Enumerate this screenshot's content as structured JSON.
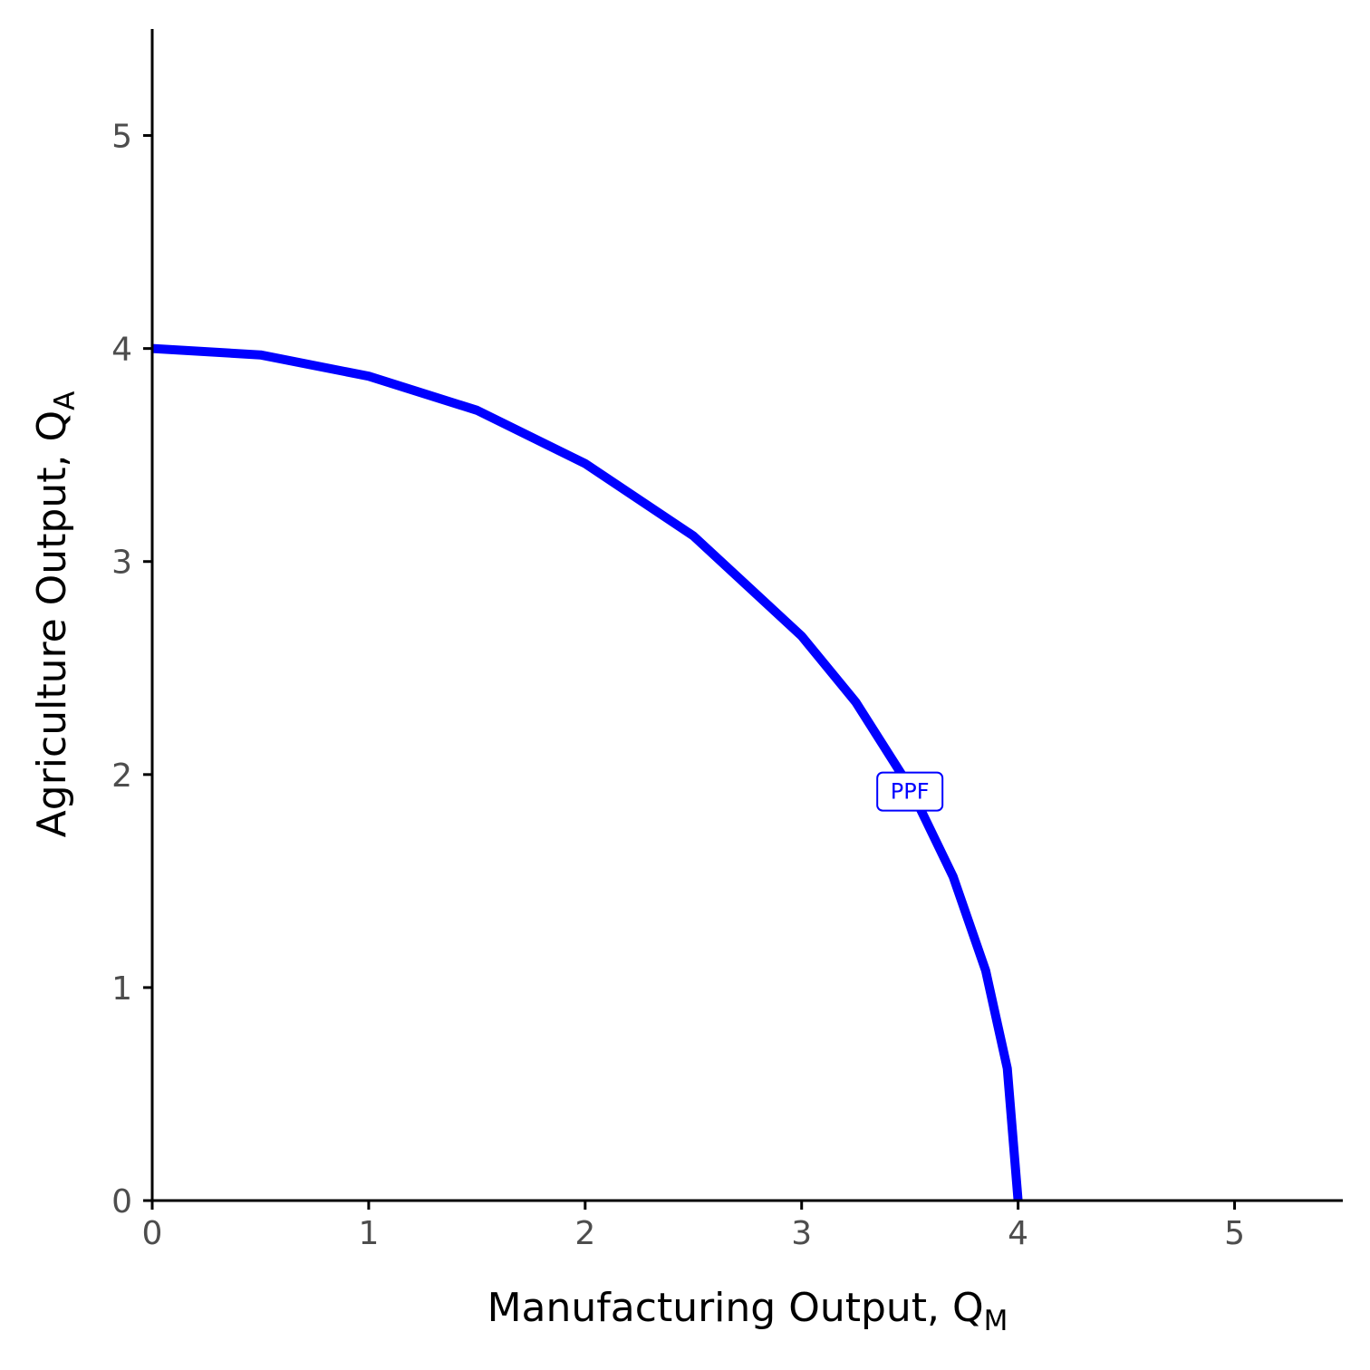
{
  "chart_data": {
    "type": "line",
    "xlabel": {
      "text": "Manufacturing Output, Q",
      "sub": "M"
    },
    "ylabel": {
      "text": "Agriculture Output, Q",
      "sub": "A"
    },
    "xlim": [
      0,
      5.5
    ],
    "ylim": [
      0,
      5.5
    ],
    "x_ticks": [
      "0",
      "1",
      "2",
      "3",
      "4",
      "5"
    ],
    "y_ticks": [
      "0",
      "1",
      "2",
      "3",
      "4",
      "5"
    ],
    "grid": false,
    "series": [
      {
        "name": "PPF",
        "color": "#0000ff",
        "points": [
          [
            0,
            4
          ],
          [
            0.5,
            3.97
          ],
          [
            1,
            3.87
          ],
          [
            1.5,
            3.71
          ],
          [
            2,
            3.46
          ],
          [
            2.5,
            3.12
          ],
          [
            3,
            2.65
          ],
          [
            3.25,
            2.34
          ],
          [
            3.5,
            1.94
          ],
          [
            3.7,
            1.52
          ],
          [
            3.85,
            1.08
          ],
          [
            3.95,
            0.62
          ],
          [
            4.0,
            0
          ]
        ]
      }
    ],
    "annotations": [
      {
        "text": "PPF",
        "x": 3.5,
        "y": 1.92
      }
    ]
  }
}
